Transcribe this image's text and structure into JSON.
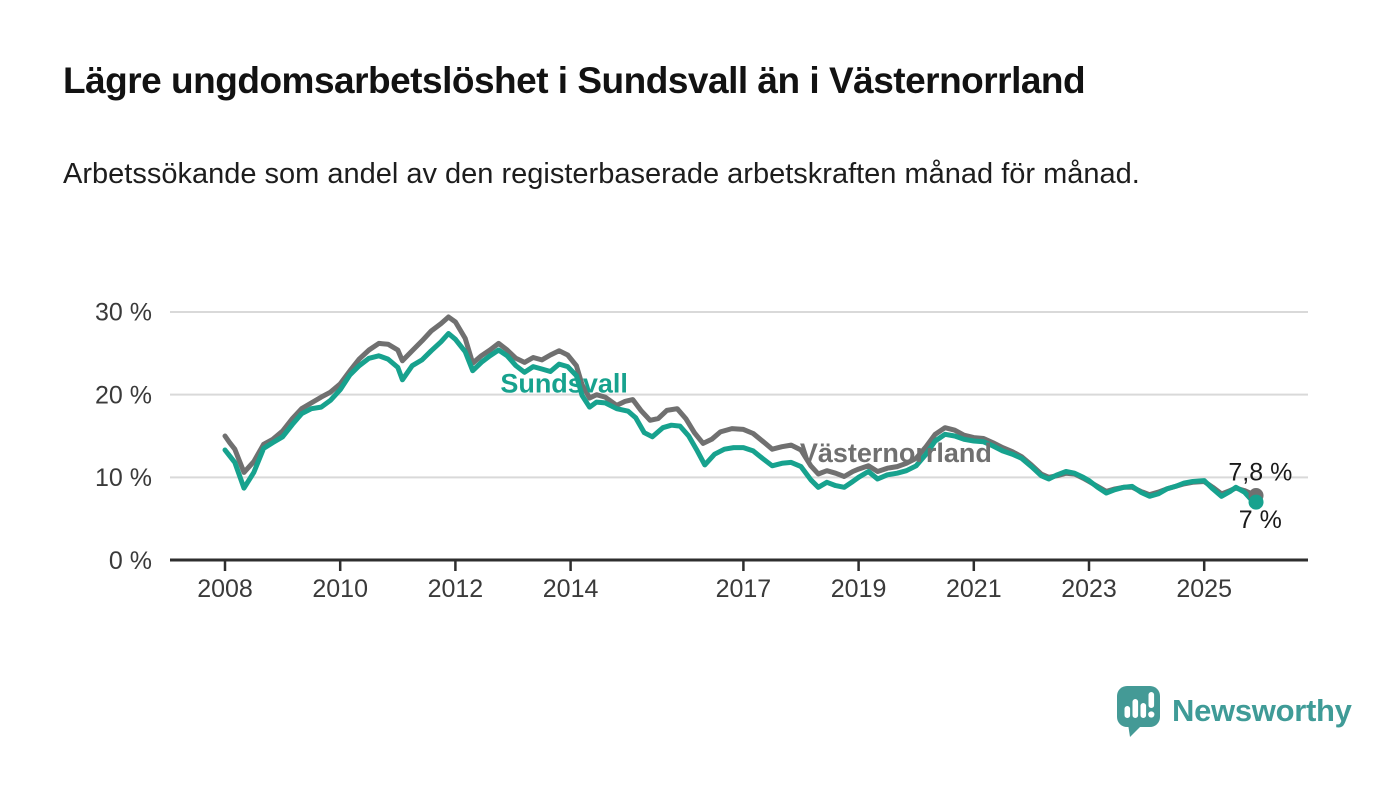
{
  "header": {
    "title": "Lägre ungdomsarbetslöshet i Sundsvall än i Västernorrland",
    "subtitle": "Arbetssökande som andel av den registerbaserade arbetskraften månad för månad."
  },
  "chart_data": {
    "type": "line",
    "unit": "%",
    "xlabel": "",
    "ylabel": "",
    "ylim": [
      0,
      33
    ],
    "xlim": [
      2007.05,
      2026.8
    ],
    "grid": "horizontal",
    "y_ticks": [
      {
        "value": 0,
        "label": "0 %"
      },
      {
        "value": 10,
        "label": "10 %"
      },
      {
        "value": 20,
        "label": "20 %"
      },
      {
        "value": 30,
        "label": "30 %"
      }
    ],
    "x_ticks": [
      {
        "value": 2008,
        "label": "2008"
      },
      {
        "value": 2010,
        "label": "2010"
      },
      {
        "value": 2012,
        "label": "2012"
      },
      {
        "value": 2014,
        "label": "2014"
      },
      {
        "value": 2017,
        "label": "2017"
      },
      {
        "value": 2019,
        "label": "2019"
      },
      {
        "value": 2021,
        "label": "2021"
      },
      {
        "value": 2023,
        "label": "2023"
      },
      {
        "value": 2025,
        "label": "2025"
      }
    ],
    "series": [
      {
        "name": "Västernorrland",
        "color": "#707070",
        "end_value": 7.8,
        "points": [
          [
            2008.0,
            15.0
          ],
          [
            2008.08,
            14.2
          ],
          [
            2008.17,
            13.4
          ],
          [
            2008.33,
            10.6
          ],
          [
            2008.5,
            11.9
          ],
          [
            2008.67,
            14.0
          ],
          [
            2008.83,
            14.6
          ],
          [
            2009.0,
            15.6
          ],
          [
            2009.17,
            17.1
          ],
          [
            2009.33,
            18.3
          ],
          [
            2009.5,
            19.0
          ],
          [
            2009.67,
            19.7
          ],
          [
            2009.83,
            20.3
          ],
          [
            2010.0,
            21.3
          ],
          [
            2010.17,
            22.9
          ],
          [
            2010.33,
            24.3
          ],
          [
            2010.5,
            25.4
          ],
          [
            2010.67,
            26.2
          ],
          [
            2010.83,
            26.1
          ],
          [
            2011.0,
            25.4
          ],
          [
            2011.08,
            24.1
          ],
          [
            2011.25,
            25.3
          ],
          [
            2011.42,
            26.5
          ],
          [
            2011.58,
            27.7
          ],
          [
            2011.75,
            28.6
          ],
          [
            2011.88,
            29.4
          ],
          [
            2012.0,
            28.8
          ],
          [
            2012.17,
            26.8
          ],
          [
            2012.3,
            23.8
          ],
          [
            2012.45,
            24.7
          ],
          [
            2012.6,
            25.4
          ],
          [
            2012.75,
            26.2
          ],
          [
            2012.9,
            25.4
          ],
          [
            2013.05,
            24.4
          ],
          [
            2013.2,
            23.9
          ],
          [
            2013.35,
            24.5
          ],
          [
            2013.5,
            24.2
          ],
          [
            2013.65,
            24.8
          ],
          [
            2013.8,
            25.3
          ],
          [
            2013.95,
            24.8
          ],
          [
            2014.1,
            23.5
          ],
          [
            2014.2,
            21.2
          ],
          [
            2014.33,
            19.6
          ],
          [
            2014.45,
            20.0
          ],
          [
            2014.6,
            19.7
          ],
          [
            2014.8,
            18.7
          ],
          [
            2014.95,
            19.2
          ],
          [
            2015.08,
            19.4
          ],
          [
            2015.22,
            18.1
          ],
          [
            2015.38,
            16.9
          ],
          [
            2015.52,
            17.1
          ],
          [
            2015.67,
            18.1
          ],
          [
            2015.85,
            18.3
          ],
          [
            2016.0,
            17.1
          ],
          [
            2016.15,
            15.4
          ],
          [
            2016.3,
            14.1
          ],
          [
            2016.45,
            14.6
          ],
          [
            2016.6,
            15.5
          ],
          [
            2016.8,
            15.9
          ],
          [
            2017.0,
            15.8
          ],
          [
            2017.17,
            15.3
          ],
          [
            2017.33,
            14.4
          ],
          [
            2017.5,
            13.4
          ],
          [
            2017.67,
            13.7
          ],
          [
            2017.83,
            13.9
          ],
          [
            2018.0,
            13.3
          ],
          [
            2018.17,
            11.4
          ],
          [
            2018.3,
            10.4
          ],
          [
            2018.45,
            10.8
          ],
          [
            2018.6,
            10.5
          ],
          [
            2018.75,
            10.1
          ],
          [
            2018.9,
            10.7
          ],
          [
            2019.0,
            11.0
          ],
          [
            2019.17,
            11.4
          ],
          [
            2019.33,
            10.7
          ],
          [
            2019.5,
            11.1
          ],
          [
            2019.67,
            11.3
          ],
          [
            2019.83,
            11.7
          ],
          [
            2020.0,
            12.3
          ],
          [
            2020.17,
            13.7
          ],
          [
            2020.33,
            15.2
          ],
          [
            2020.5,
            16.0
          ],
          [
            2020.67,
            15.7
          ],
          [
            2020.83,
            15.1
          ],
          [
            2021.0,
            14.8
          ],
          [
            2021.17,
            14.7
          ],
          [
            2021.33,
            14.2
          ],
          [
            2021.5,
            13.6
          ],
          [
            2021.67,
            13.1
          ],
          [
            2021.83,
            12.5
          ],
          [
            2022.0,
            11.5
          ],
          [
            2022.17,
            10.4
          ],
          [
            2022.3,
            10.0
          ],
          [
            2022.45,
            10.2
          ],
          [
            2022.6,
            10.5
          ],
          [
            2022.75,
            10.4
          ],
          [
            2022.9,
            9.9
          ],
          [
            2023.0,
            9.5
          ],
          [
            2023.15,
            8.9
          ],
          [
            2023.3,
            8.3
          ],
          [
            2023.45,
            8.6
          ],
          [
            2023.6,
            8.8
          ],
          [
            2023.75,
            8.8
          ],
          [
            2023.9,
            8.3
          ],
          [
            2024.05,
            7.9
          ],
          [
            2024.2,
            8.2
          ],
          [
            2024.35,
            8.6
          ],
          [
            2024.5,
            8.9
          ],
          [
            2024.65,
            9.2
          ],
          [
            2024.8,
            9.4
          ],
          [
            2025.0,
            9.5
          ],
          [
            2025.15,
            8.8
          ],
          [
            2025.3,
            8.0
          ],
          [
            2025.45,
            8.4
          ],
          [
            2025.55,
            8.7
          ],
          [
            2025.7,
            8.4
          ],
          [
            2025.83,
            8.0
          ],
          [
            2025.9,
            7.8
          ]
        ]
      },
      {
        "name": "Sundsvall",
        "color": "#17a28e",
        "end_value": 7.0,
        "points": [
          [
            2008.0,
            13.3
          ],
          [
            2008.08,
            12.6
          ],
          [
            2008.17,
            11.8
          ],
          [
            2008.33,
            8.7
          ],
          [
            2008.5,
            10.6
          ],
          [
            2008.67,
            13.5
          ],
          [
            2008.83,
            14.2
          ],
          [
            2009.0,
            14.9
          ],
          [
            2009.17,
            16.4
          ],
          [
            2009.33,
            17.7
          ],
          [
            2009.5,
            18.3
          ],
          [
            2009.67,
            18.5
          ],
          [
            2009.83,
            19.3
          ],
          [
            2010.0,
            20.6
          ],
          [
            2010.17,
            22.4
          ],
          [
            2010.33,
            23.5
          ],
          [
            2010.5,
            24.4
          ],
          [
            2010.67,
            24.7
          ],
          [
            2010.83,
            24.3
          ],
          [
            2011.0,
            23.3
          ],
          [
            2011.08,
            21.8
          ],
          [
            2011.25,
            23.5
          ],
          [
            2011.42,
            24.2
          ],
          [
            2011.58,
            25.3
          ],
          [
            2011.75,
            26.4
          ],
          [
            2011.88,
            27.4
          ],
          [
            2012.0,
            26.7
          ],
          [
            2012.17,
            25.2
          ],
          [
            2012.3,
            22.9
          ],
          [
            2012.45,
            23.9
          ],
          [
            2012.6,
            24.7
          ],
          [
            2012.75,
            25.4
          ],
          [
            2012.9,
            24.7
          ],
          [
            2013.05,
            23.5
          ],
          [
            2013.2,
            22.7
          ],
          [
            2013.35,
            23.4
          ],
          [
            2013.5,
            23.1
          ],
          [
            2013.65,
            22.8
          ],
          [
            2013.8,
            23.7
          ],
          [
            2013.95,
            23.4
          ],
          [
            2014.1,
            22.3
          ],
          [
            2014.2,
            19.9
          ],
          [
            2014.33,
            18.5
          ],
          [
            2014.45,
            19.1
          ],
          [
            2014.6,
            19.0
          ],
          [
            2014.8,
            18.3
          ],
          [
            2015.0,
            18.0
          ],
          [
            2015.13,
            17.2
          ],
          [
            2015.28,
            15.4
          ],
          [
            2015.42,
            14.9
          ],
          [
            2015.6,
            16.0
          ],
          [
            2015.75,
            16.3
          ],
          [
            2015.9,
            16.2
          ],
          [
            2016.05,
            15.0
          ],
          [
            2016.2,
            13.2
          ],
          [
            2016.33,
            11.5
          ],
          [
            2016.5,
            12.8
          ],
          [
            2016.67,
            13.4
          ],
          [
            2016.83,
            13.6
          ],
          [
            2017.0,
            13.6
          ],
          [
            2017.17,
            13.2
          ],
          [
            2017.33,
            12.3
          ],
          [
            2017.5,
            11.4
          ],
          [
            2017.67,
            11.7
          ],
          [
            2017.83,
            11.8
          ],
          [
            2018.0,
            11.3
          ],
          [
            2018.17,
            9.7
          ],
          [
            2018.3,
            8.8
          ],
          [
            2018.45,
            9.4
          ],
          [
            2018.6,
            9.0
          ],
          [
            2018.75,
            8.8
          ],
          [
            2018.9,
            9.5
          ],
          [
            2019.0,
            10.0
          ],
          [
            2019.17,
            10.7
          ],
          [
            2019.33,
            9.8
          ],
          [
            2019.5,
            10.3
          ],
          [
            2019.67,
            10.5
          ],
          [
            2019.83,
            10.8
          ],
          [
            2020.0,
            11.4
          ],
          [
            2020.17,
            12.8
          ],
          [
            2020.33,
            14.4
          ],
          [
            2020.5,
            15.2
          ],
          [
            2020.67,
            15.0
          ],
          [
            2020.83,
            14.6
          ],
          [
            2021.0,
            14.4
          ],
          [
            2021.17,
            14.3
          ],
          [
            2021.33,
            13.8
          ],
          [
            2021.5,
            13.2
          ],
          [
            2021.67,
            12.8
          ],
          [
            2021.83,
            12.3
          ],
          [
            2022.0,
            11.3
          ],
          [
            2022.17,
            10.2
          ],
          [
            2022.3,
            9.8
          ],
          [
            2022.45,
            10.3
          ],
          [
            2022.6,
            10.7
          ],
          [
            2022.75,
            10.5
          ],
          [
            2022.9,
            10.0
          ],
          [
            2023.0,
            9.6
          ],
          [
            2023.15,
            8.8
          ],
          [
            2023.3,
            8.1
          ],
          [
            2023.45,
            8.5
          ],
          [
            2023.6,
            8.8
          ],
          [
            2023.75,
            8.9
          ],
          [
            2023.9,
            8.2
          ],
          [
            2024.05,
            7.7
          ],
          [
            2024.2,
            8.0
          ],
          [
            2024.35,
            8.6
          ],
          [
            2024.5,
            8.9
          ],
          [
            2024.65,
            9.3
          ],
          [
            2024.8,
            9.5
          ],
          [
            2025.0,
            9.6
          ],
          [
            2025.15,
            8.6
          ],
          [
            2025.3,
            7.7
          ],
          [
            2025.45,
            8.3
          ],
          [
            2025.55,
            8.8
          ],
          [
            2025.7,
            8.2
          ],
          [
            2025.83,
            7.2
          ],
          [
            2025.9,
            7.0
          ]
        ]
      }
    ],
    "annotations": [
      {
        "id": "series-label-sundsvall",
        "text": "Sundsvall",
        "color": "#17a28e",
        "x": 2012.78,
        "y": 21.4,
        "bold": true,
        "size": 27
      },
      {
        "id": "series-label-vasternorrland",
        "text": "Västernorrland",
        "color": "#707070",
        "x": 2017.98,
        "y": 13.0,
        "bold": true,
        "size": 27
      },
      {
        "id": "end-value-label-vasternorrland",
        "text": "7,8 %",
        "color": "#1a1a1a",
        "x": 2025.42,
        "y": 10.7,
        "bold": false,
        "size": 25
      },
      {
        "id": "end-value-label-sundsvall",
        "text": "7 %",
        "color": "#1a1a1a",
        "x": 2025.6,
        "y": 4.9,
        "bold": false,
        "size": 25
      }
    ],
    "axis_colors": {
      "grid": "#d9d9d9",
      "axis": "#2e2e2e",
      "tick_text": "#3a3a3a"
    }
  },
  "branding": {
    "logo_text": "Newsworthy",
    "logo_icon": "newsworthy-speech-bubble-barchart-icon",
    "logo_color": "#449a96"
  }
}
